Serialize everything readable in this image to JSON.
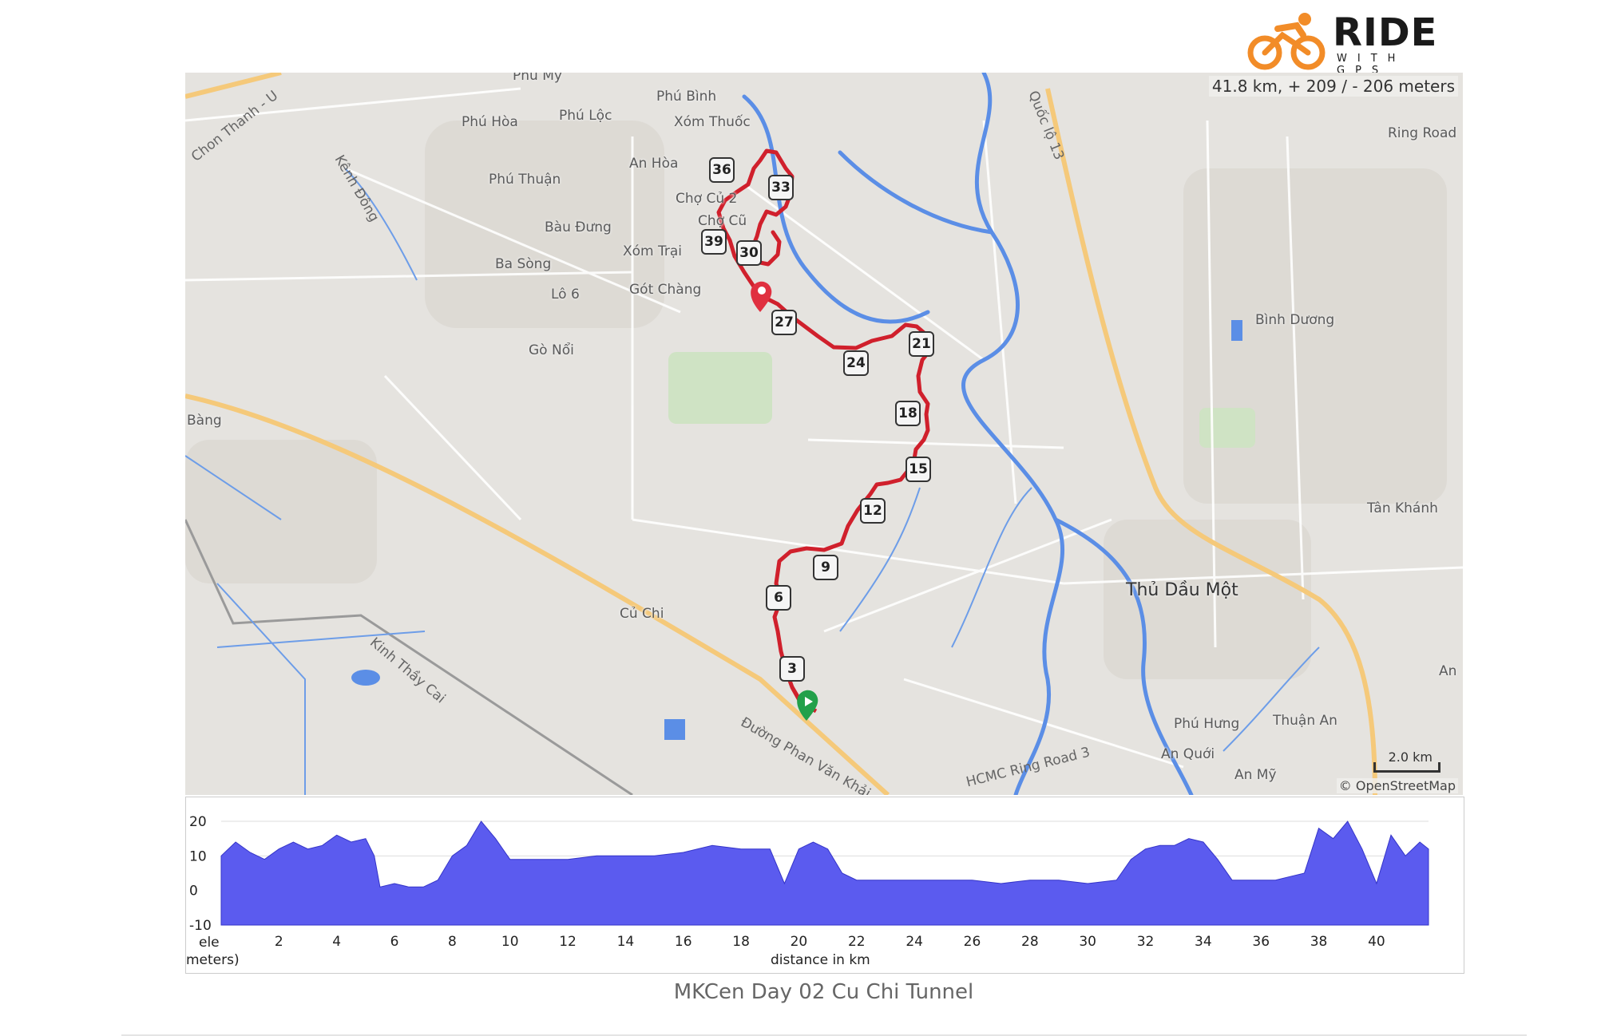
{
  "brand": {
    "name": "RIDE",
    "tagline": "WITH GPS",
    "icon": "cyclist-logo-icon",
    "accent": "#f28c28"
  },
  "map": {
    "stats": "41.8 km, + 209 / - 206 meters",
    "scale_label": "2.0 km",
    "attribution": "© OpenStreetMap",
    "route_color": "#d0202c",
    "start_marker_color": "#22a04a",
    "end_marker_color": "#e03040",
    "river_color": "#5b8ee6",
    "major_road_color": "#f5c97a",
    "places": [
      "Phú Mỹ",
      "Phú Bình",
      "Phú Hòa",
      "Phú Lộc",
      "Xóm Thuốc",
      "An Hòa",
      "Phú Thuận",
      "Chợ Củ 2",
      "Chợ Cũ",
      "Bàu Đưng",
      "Xóm Trại",
      "Ba Sòng",
      "Lô 6",
      "Gót Chàng",
      "Gò Nổi",
      "Bàng",
      "Củ Chi",
      "Kênh Đông",
      "Chon Thanh - U",
      "Quốc lộ 13",
      "Ring Road",
      "Bình Dương",
      "Tân Khánh",
      "Thủ Dầu Một",
      "An",
      "Phú Hưng",
      "Thuận An",
      "An Quới",
      "An Mỹ",
      "HCMC Ring Road 3",
      "Kinh Thầy Cai",
      "Đường Phan Văn Khải"
    ],
    "km_markers": [
      "3",
      "6",
      "9",
      "12",
      "15",
      "18",
      "21",
      "24",
      "27",
      "30",
      "33",
      "36",
      "39"
    ]
  },
  "elevation": {
    "y_label": "ele",
    "y_label_unit": "meters)",
    "x_label": "distance in km",
    "y_ticks": [
      "20",
      "10",
      "0",
      "-10"
    ],
    "x_ticks": [
      "2",
      "4",
      "6",
      "8",
      "10",
      "12",
      "14",
      "16",
      "18",
      "20",
      "22",
      "24",
      "26",
      "28",
      "30",
      "32",
      "34",
      "36",
      "38",
      "40"
    ],
    "fill_color": "#5b5bef",
    "chart_data": {
      "type": "area",
      "xlabel": "distance in km",
      "ylabel": "ele meters",
      "xlim": [
        0,
        41.8
      ],
      "ylim": [
        -10,
        20
      ],
      "x": [
        0,
        0.5,
        1,
        1.5,
        2,
        2.5,
        3,
        3.5,
        4,
        4.5,
        5,
        5.3,
        5.5,
        6,
        6.5,
        7,
        7.5,
        8,
        8.5,
        9,
        9.5,
        10,
        11,
        12,
        13,
        14,
        15,
        16,
        17,
        18,
        19,
        19.2,
        19.5,
        20,
        20.5,
        21,
        21.5,
        22,
        23,
        24,
        25,
        26,
        27,
        28,
        29,
        30,
        31,
        31.5,
        32,
        32.5,
        33,
        33.5,
        34,
        34.5,
        35,
        35.5,
        36,
        36.5,
        37,
        37.5,
        38,
        38.5,
        39,
        39.5,
        40,
        40.5,
        41,
        41.5,
        41.8
      ],
      "y": [
        10,
        14,
        11,
        9,
        12,
        14,
        12,
        13,
        16,
        14,
        15,
        10,
        1,
        2,
        1,
        1,
        3,
        10,
        13,
        20,
        15,
        9,
        9,
        9,
        10,
        10,
        10,
        11,
        13,
        12,
        12,
        8,
        2,
        12,
        14,
        12,
        5,
        3,
        3,
        3,
        3,
        3,
        2,
        3,
        3,
        2,
        3,
        9,
        12,
        13,
        13,
        15,
        14,
        9,
        3,
        3,
        3,
        3,
        4,
        5,
        18,
        15,
        20,
        12,
        2,
        16,
        10,
        14,
        12
      ]
    }
  },
  "caption": "MKCen Day 02 Cu Chi Tunnel"
}
